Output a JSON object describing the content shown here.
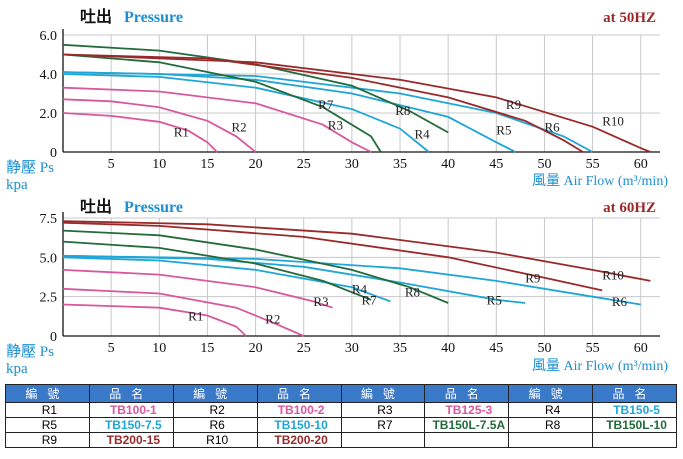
{
  "colors": {
    "pink": "#d9579e",
    "cyan": "#1fa6d6",
    "green": "#226b3a",
    "darkred": "#9a2a2a",
    "header_blue": "#3a78c8",
    "pressure_blue": "#1c8fd0"
  },
  "chart_data": [
    {
      "type": "line",
      "title_cn": "吐出",
      "title_en": "Pressure",
      "frequency_label": "at  50HZ",
      "ylabel": "静壓 Ps",
      "yunit": "kpa",
      "xlabel_cn": "風量",
      "xlabel_en": "Air Flow",
      "xunit": "(m³/min)",
      "xlim": [
        0,
        62
      ],
      "ylim": [
        0,
        6.0
      ],
      "x_ticks": [
        "5",
        "10",
        "15",
        "20",
        "25",
        "30",
        "35",
        "40",
        "45",
        "50",
        "55",
        "60"
      ],
      "y_ticks": [
        "0",
        "2.0",
        "4.0",
        "6.0"
      ],
      "grid": true,
      "series": [
        {
          "name": "R1",
          "color": "pink",
          "points": [
            [
              0,
              2.0
            ],
            [
              5,
              1.85
            ],
            [
              10,
              1.55
            ],
            [
              13,
              1.1
            ],
            [
              15,
              0.5
            ],
            [
              16,
              0
            ]
          ]
        },
        {
          "name": "R2",
          "color": "pink",
          "points": [
            [
              0,
              2.7
            ],
            [
              5,
              2.6
            ],
            [
              10,
              2.3
            ],
            [
              15,
              1.6
            ],
            [
              18,
              0.8
            ],
            [
              20,
              0
            ]
          ]
        },
        {
          "name": "R3",
          "color": "pink",
          "points": [
            [
              0,
              3.3
            ],
            [
              10,
              3.1
            ],
            [
              20,
              2.5
            ],
            [
              27,
              1.4
            ],
            [
              30,
              0.5
            ],
            [
              32,
              0
            ]
          ]
        },
        {
          "name": "R4",
          "color": "cyan",
          "points": [
            [
              0,
              4.0
            ],
            [
              10,
              3.85
            ],
            [
              20,
              3.3
            ],
            [
              30,
              2.2
            ],
            [
              35,
              1.2
            ],
            [
              38,
              0
            ]
          ]
        },
        {
          "name": "R5",
          "color": "cyan",
          "points": [
            [
              0,
              4.1
            ],
            [
              10,
              4.0
            ],
            [
              20,
              3.7
            ],
            [
              30,
              3.0
            ],
            [
              40,
              1.8
            ],
            [
              45,
              0.5
            ],
            [
              47,
              0
            ]
          ]
        },
        {
          "name": "R6",
          "color": "cyan",
          "points": [
            [
              0,
              4.1
            ],
            [
              20,
              3.9
            ],
            [
              35,
              3.0
            ],
            [
              45,
              2.0
            ],
            [
              52,
              0.8
            ],
            [
              55,
              0
            ]
          ]
        },
        {
          "name": "R7",
          "color": "green",
          "points": [
            [
              0,
              5.0
            ],
            [
              10,
              4.6
            ],
            [
              20,
              3.6
            ],
            [
              27,
              2.3
            ],
            [
              32,
              0.8
            ],
            [
              33,
              0
            ]
          ]
        },
        {
          "name": "R8",
          "color": "green",
          "points": [
            [
              0,
              5.5
            ],
            [
              10,
              5.2
            ],
            [
              20,
              4.5
            ],
            [
              30,
              3.4
            ],
            [
              36,
              2.1
            ],
            [
              40,
              1.0
            ]
          ]
        },
        {
          "name": "R9",
          "color": "darkred",
          "points": [
            [
              0,
              5.0
            ],
            [
              15,
              4.8
            ],
            [
              30,
              3.8
            ],
            [
              40,
              2.8
            ],
            [
              48,
              1.6
            ],
            [
              52,
              0.6
            ],
            [
              54,
              0
            ]
          ]
        },
        {
          "name": "R10",
          "color": "darkred",
          "points": [
            [
              0,
              5.0
            ],
            [
              20,
              4.6
            ],
            [
              35,
              3.7
            ],
            [
              45,
              2.8
            ],
            [
              55,
              1.3
            ],
            [
              60,
              0.2
            ],
            [
              61,
              0
            ]
          ]
        }
      ],
      "labels": [
        {
          "text": "R1",
          "x": 11.5,
          "y": 0.8
        },
        {
          "text": "R2",
          "x": 17.5,
          "y": 1.05
        },
        {
          "text": "R3",
          "x": 27.5,
          "y": 1.15
        },
        {
          "text": "R7",
          "x": 26.5,
          "y": 2.2
        },
        {
          "text": "R8",
          "x": 34.5,
          "y": 1.9
        },
        {
          "text": "R4",
          "x": 36.5,
          "y": 0.7
        },
        {
          "text": "R9",
          "x": 46,
          "y": 2.2
        },
        {
          "text": "R5",
          "x": 45,
          "y": 0.9
        },
        {
          "text": "R6",
          "x": 50,
          "y": 1.05
        },
        {
          "text": "R10",
          "x": 56,
          "y": 1.35
        }
      ]
    },
    {
      "type": "line",
      "title_cn": "吐出",
      "title_en": "Pressure",
      "frequency_label": "at  60HZ",
      "ylabel": "静壓 Ps",
      "yunit": "kpa",
      "xlabel_cn": "風量",
      "xlabel_en": "Air Flow",
      "xunit": "(m³/min)",
      "xlim": [
        0,
        62
      ],
      "ylim": [
        0,
        7.5
      ],
      "x_ticks": [
        "5",
        "10",
        "15",
        "20",
        "25",
        "30",
        "35",
        "40",
        "45",
        "50",
        "55",
        "60"
      ],
      "y_ticks": [
        "0",
        "2.5",
        "5.0",
        "7.5"
      ],
      "grid": true,
      "series": [
        {
          "name": "R1",
          "color": "pink",
          "points": [
            [
              0,
              2.0
            ],
            [
              10,
              1.8
            ],
            [
              15,
              1.3
            ],
            [
              18,
              0.6
            ],
            [
              19,
              0
            ]
          ]
        },
        {
          "name": "R2",
          "color": "pink",
          "points": [
            [
              0,
              3.0
            ],
            [
              10,
              2.7
            ],
            [
              18,
              1.8
            ],
            [
              22,
              0.8
            ],
            [
              25,
              0
            ]
          ]
        },
        {
          "name": "R3",
          "color": "pink",
          "points": [
            [
              0,
              4.2
            ],
            [
              10,
              3.9
            ],
            [
              20,
              3.1
            ],
            [
              26,
              2.2
            ],
            [
              28,
              1.8
            ]
          ]
        },
        {
          "name": "R4",
          "color": "cyan",
          "points": [
            [
              0,
              5.0
            ],
            [
              10,
              4.8
            ],
            [
              20,
              4.2
            ],
            [
              30,
              3.1
            ],
            [
              34,
              2.2
            ]
          ]
        },
        {
          "name": "R5",
          "color": "cyan",
          "points": [
            [
              0,
              5.1
            ],
            [
              15,
              4.9
            ],
            [
              25,
              4.4
            ],
            [
              35,
              3.4
            ],
            [
              45,
              2.3
            ],
            [
              48,
              2.1
            ]
          ]
        },
        {
          "name": "R6",
          "color": "cyan",
          "points": [
            [
              0,
              5.1
            ],
            [
              20,
              4.9
            ],
            [
              35,
              4.3
            ],
            [
              45,
              3.5
            ],
            [
              55,
              2.5
            ],
            [
              60,
              2.0
            ]
          ]
        },
        {
          "name": "R7",
          "color": "green",
          "points": [
            [
              0,
              6.0
            ],
            [
              10,
              5.6
            ],
            [
              20,
              4.6
            ],
            [
              27,
              3.5
            ],
            [
              32,
              2.3
            ]
          ]
        },
        {
          "name": "R8",
          "color": "green",
          "points": [
            [
              0,
              6.7
            ],
            [
              10,
              6.4
            ],
            [
              20,
              5.5
            ],
            [
              30,
              4.2
            ],
            [
              36,
              3.1
            ],
            [
              40,
              2.1
            ]
          ]
        },
        {
          "name": "R9",
          "color": "darkred",
          "points": [
            [
              0,
              7.2
            ],
            [
              10,
              7.0
            ],
            [
              25,
              6.3
            ],
            [
              40,
              5.0
            ],
            [
              50,
              3.7
            ],
            [
              56,
              2.9
            ]
          ]
        },
        {
          "name": "R10",
          "color": "darkred",
          "points": [
            [
              0,
              7.3
            ],
            [
              15,
              7.1
            ],
            [
              30,
              6.5
            ],
            [
              45,
              5.3
            ],
            [
              55,
              4.2
            ],
            [
              61,
              3.5
            ]
          ]
        }
      ],
      "labels": [
        {
          "text": "R1",
          "x": 13,
          "y": 1.0
        },
        {
          "text": "R2",
          "x": 21,
          "y": 0.8
        },
        {
          "text": "R3",
          "x": 26,
          "y": 1.9
        },
        {
          "text": "R4",
          "x": 30,
          "y": 2.7
        },
        {
          "text": "R7",
          "x": 31,
          "y": 2.0
        },
        {
          "text": "R8",
          "x": 35.5,
          "y": 2.5
        },
        {
          "text": "R5",
          "x": 44,
          "y": 2.0
        },
        {
          "text": "R9",
          "x": 48,
          "y": 3.4
        },
        {
          "text": "R10",
          "x": 56,
          "y": 3.6
        },
        {
          "text": "R6",
          "x": 57,
          "y": 1.9
        }
      ]
    }
  ],
  "table": {
    "headers": [
      "編號",
      "品名",
      "編號",
      "品名",
      "編號",
      "品名",
      "編號",
      "品名"
    ],
    "rows": [
      [
        {
          "code": "R1",
          "name": "TB100-1",
          "color": "pink"
        },
        {
          "code": "R2",
          "name": "TB100-2",
          "color": "pink"
        },
        {
          "code": "R3",
          "name": "TB125-3",
          "color": "pink"
        },
        {
          "code": "R4",
          "name": "TB150-5",
          "color": "cyan"
        }
      ],
      [
        {
          "code": "R5",
          "name": "TB150-7.5",
          "color": "cyan"
        },
        {
          "code": "R6",
          "name": "TB150-10",
          "color": "cyan"
        },
        {
          "code": "R7",
          "name": "TB150L-7.5A",
          "color": "green"
        },
        {
          "code": "R8",
          "name": "TB150L-10",
          "color": "green"
        }
      ],
      [
        {
          "code": "R9",
          "name": "TB200-15",
          "color": "darkred"
        },
        {
          "code": "R10",
          "name": "TB200-20",
          "color": "darkred"
        },
        {
          "code": "",
          "name": "",
          "color": "pink"
        },
        {
          "code": "",
          "name": "",
          "color": "pink"
        }
      ]
    ]
  }
}
